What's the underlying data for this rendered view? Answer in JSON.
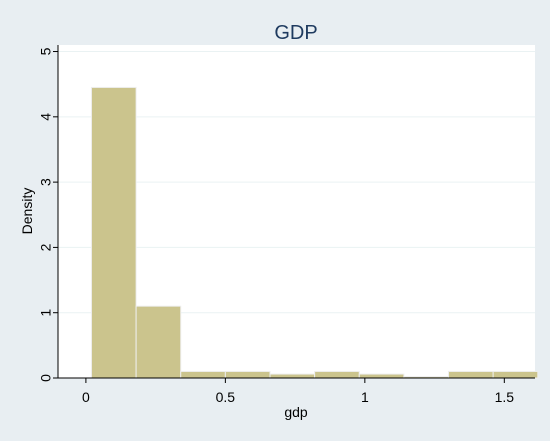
{
  "chart_data": {
    "type": "bar",
    "title": "GDP",
    "xlabel": "gdp",
    "ylabel": "Density",
    "xlim": [
      -0.1,
      1.61
    ],
    "ylim": [
      0,
      5.1
    ],
    "x_ticks": [
      0,
      0.5,
      1,
      1.5
    ],
    "x_tick_labels": [
      "0",
      "0.5",
      "1",
      "1.5"
    ],
    "y_ticks": [
      0,
      1,
      2,
      3,
      4,
      5
    ],
    "y_tick_labels": [
      "0",
      "1",
      "2",
      "3",
      "4",
      "5"
    ],
    "grid": true,
    "bins": [
      {
        "x0": 0.02,
        "x1": 0.18,
        "density": 4.45
      },
      {
        "x0": 0.18,
        "x1": 0.34,
        "density": 1.1
      },
      {
        "x0": 0.34,
        "x1": 0.5,
        "density": 0.1
      },
      {
        "x0": 0.5,
        "x1": 0.66,
        "density": 0.1
      },
      {
        "x0": 0.66,
        "x1": 0.82,
        "density": 0.06
      },
      {
        "x0": 0.82,
        "x1": 0.98,
        "density": 0.1
      },
      {
        "x0": 0.98,
        "x1": 1.14,
        "density": 0.06
      },
      {
        "x0": 1.14,
        "x1": 1.3,
        "density": 0.02
      },
      {
        "x0": 1.3,
        "x1": 1.46,
        "density": 0.1
      },
      {
        "x0": 1.46,
        "x1": 1.62,
        "density": 0.1
      }
    ]
  },
  "colors": {
    "outer_background": "#e8eef2",
    "plot_background": "#ffffff",
    "bar_fill": "#cbc48d",
    "bar_stroke": "#eeeeee",
    "grid": "#eaf2f3",
    "axis": "#000000",
    "title": "#1e3a5f",
    "text": "#000000"
  }
}
